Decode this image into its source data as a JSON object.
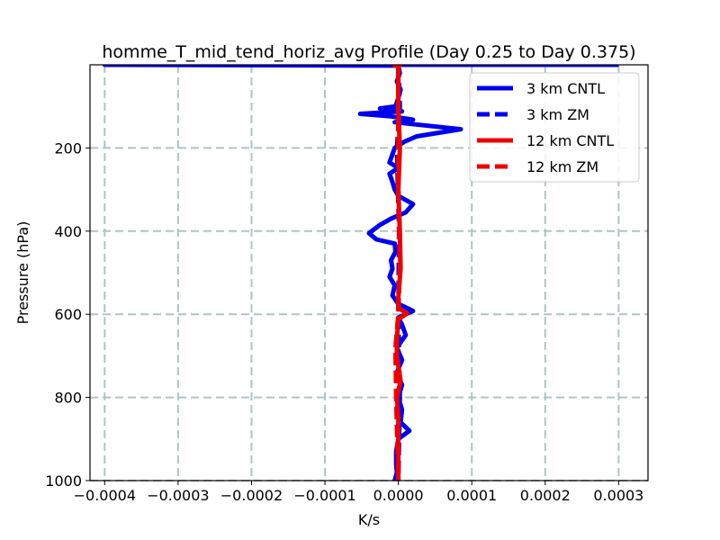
{
  "chart_data": {
    "type": "line",
    "title": "homme_T_mid_tend_horiz_avg Profile (Day 0.25 to Day 0.375)",
    "xlabel": "K/s",
    "ylabel": "Pressure (hPa)",
    "xlim": [
      -0.00042,
      0.00034
    ],
    "ylim": [
      1000,
      0
    ],
    "y_inverted": true,
    "grid": true,
    "legend_position": "top-right",
    "x_ticks": [
      -0.0004,
      -0.0003,
      -0.0002,
      -0.0001,
      0.0,
      0.0001,
      0.0002,
      0.0003
    ],
    "x_tick_labels": [
      "−0.0004",
      "−0.0003",
      "−0.0002",
      "−0.0001",
      "0.0000",
      "0.0001",
      "0.0002",
      "0.0003"
    ],
    "y_ticks": [
      200,
      400,
      600,
      800,
      1000
    ],
    "y_tick_labels": [
      "200",
      "400",
      "600",
      "800",
      "1000"
    ],
    "series": [
      {
        "name": "3 km CNTL",
        "color": "#0000ee",
        "style": "solid",
        "points": [
          [
            0.0003,
            0
          ],
          [
            -0.0004,
            0
          ],
          [
            0.0,
            2
          ],
          [
            2e-06,
            20
          ],
          [
            -2e-06,
            40
          ],
          [
            3e-06,
            60
          ],
          [
            0.0,
            80
          ],
          [
            -4e-06,
            100
          ],
          [
            -2.5e-05,
            105
          ],
          [
            5e-06,
            112
          ],
          [
            -5.2e-05,
            118
          ],
          [
            -1e-05,
            124
          ],
          [
            2e-05,
            132
          ],
          [
            -5e-06,
            138
          ],
          [
            8.5e-05,
            155
          ],
          [
            2.5e-05,
            172
          ],
          [
            8e-06,
            185
          ],
          [
            -5e-06,
            200
          ],
          [
            -8e-06,
            215
          ],
          [
            -1.2e-05,
            235
          ],
          [
            0.0,
            248
          ],
          [
            -1.2e-05,
            262
          ],
          [
            -8e-06,
            282
          ],
          [
            -5e-06,
            300
          ],
          [
            0.0,
            315
          ],
          [
            2e-05,
            335
          ],
          [
            1e-05,
            355
          ],
          [
            -1e-05,
            370
          ],
          [
            -2.5e-05,
            385
          ],
          [
            -4e-05,
            405
          ],
          [
            -3e-05,
            420
          ],
          [
            -5e-06,
            430
          ],
          [
            -4e-06,
            450
          ],
          [
            -1e-05,
            470
          ],
          [
            -8e-06,
            490
          ],
          [
            -1.2e-05,
            510
          ],
          [
            -5e-06,
            530
          ],
          [
            -8e-06,
            555
          ],
          [
            0.0,
            575
          ],
          [
            2e-05,
            592
          ],
          [
            0.0,
            608
          ],
          [
            5e-06,
            625
          ],
          [
            1e-05,
            650
          ],
          [
            -2e-06,
            680
          ],
          [
            5e-06,
            710
          ],
          [
            -2e-06,
            740
          ],
          [
            5e-06,
            770
          ],
          [
            0.0,
            800
          ],
          [
            5e-06,
            830
          ],
          [
            3e-06,
            860
          ],
          [
            1.5e-05,
            880
          ],
          [
            0.0,
            900
          ],
          [
            -3e-06,
            930
          ],
          [
            -3e-06,
            960
          ],
          [
            -2e-06,
            980
          ],
          [
            -5e-06,
            1000
          ]
        ]
      },
      {
        "name": "3 km ZM",
        "color": "#0000ee",
        "style": "dashed",
        "points": [
          [
            0.0,
            0
          ],
          [
            2e-06,
            100
          ],
          [
            -2e-06,
            200
          ],
          [
            1e-06,
            400
          ],
          [
            0.0,
            600
          ],
          [
            2e-06,
            800
          ],
          [
            0.0,
            1000
          ]
        ]
      },
      {
        "name": "12 km CNTL",
        "color": "#ee0000",
        "style": "solid",
        "points": [
          [
            5e-06,
            0
          ],
          [
            -5e-06,
            1
          ],
          [
            0.0,
            3
          ],
          [
            0.0,
            100
          ],
          [
            2e-06,
            200
          ],
          [
            0.0,
            300
          ],
          [
            2e-06,
            400
          ],
          [
            3e-06,
            490
          ],
          [
            0.0,
            560
          ],
          [
            0.0,
            585
          ],
          [
            1.2e-05,
            598
          ],
          [
            0.0,
            612
          ],
          [
            -2e-06,
            660
          ],
          [
            -2e-06,
            700
          ],
          [
            3e-06,
            760
          ],
          [
            -2e-06,
            800
          ],
          [
            0.0,
            850
          ],
          [
            0.0,
            1000
          ]
        ]
      },
      {
        "name": "12 km ZM",
        "color": "#ee0000",
        "style": "dashed",
        "points": [
          [
            0.0,
            0
          ],
          [
            0.0,
            300
          ],
          [
            2e-06,
            480
          ],
          [
            0.0,
            600
          ],
          [
            -4e-06,
            680
          ],
          [
            -3e-06,
            800
          ],
          [
            0.0,
            1000
          ]
        ]
      }
    ]
  }
}
